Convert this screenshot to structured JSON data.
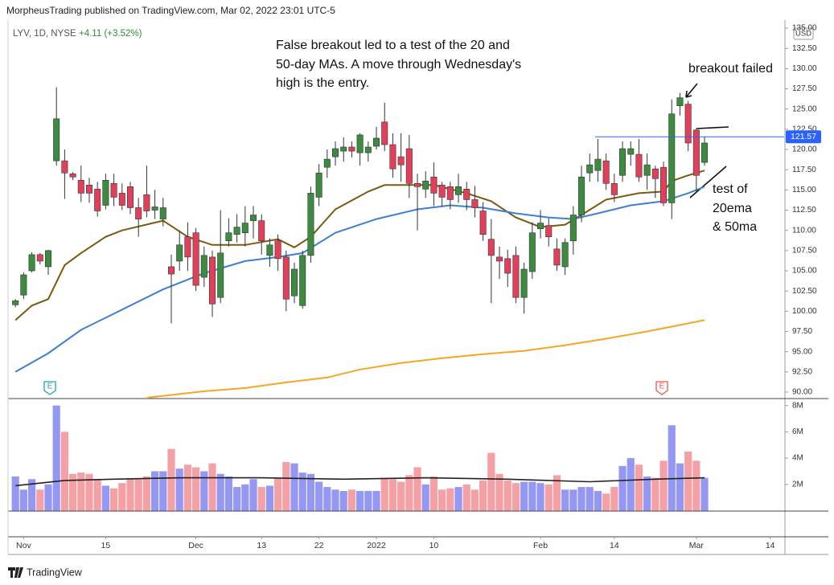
{
  "chart_data": {
    "type": "candlestick",
    "title": "MorpheusTrading published on TradingView.com, Mar 02, 2022 23:01 UTC-5",
    "symbol": "LYV, 1D, NYSE",
    "change": "+4.11 (+3.52%)",
    "currency": "USD",
    "footer": "TradingView",
    "annotations": {
      "note": [
        "False breakout led to a test of the 20 and",
        "50-day MAs.  A move through Wednesday's",
        "high is the entry."
      ],
      "breakout": "breakout failed",
      "test": [
        "test of",
        "20ema",
        "& 50ma"
      ]
    },
    "up_color": "#3d8b40",
    "down_color": "#e2405a",
    "candles": {
      "open": [
        100.8,
        102,
        105,
        107,
        105.5,
        118.6,
        118.6,
        117,
        116.2,
        115.6,
        115.1,
        113.1,
        115.8,
        114.6,
        115.4,
        112.8,
        114.4,
        112.5,
        111.4,
        105.5,
        106.2,
        109.2,
        109.7,
        104.2,
        106.7,
        101.7,
        108.7,
        109.5,
        109.7,
        111.2,
        111.2,
        106.9,
        108.7,
        106.7,
        101.9,
        100.7,
        106.9,
        114.1,
        117.8,
        119.1,
        119.8,
        120.3,
        119.6,
        119.6,
        120.4,
        123.4,
        120.6,
        119.1,
        120.1,
        115.8,
        115.1,
        116.6,
        115.6,
        115.4,
        114.4,
        115.1,
        113.8,
        112.4,
        108.9,
        106.7,
        106.5,
        106.9,
        101.7,
        104.9,
        110.2,
        110.6,
        107.7,
        105.5,
        108.7,
        111.9,
        117.1,
        117.4,
        118.6,
        115.8,
        116.8,
        119.4,
        119.4,
        116.8,
        117.6,
        117.8,
        113.4,
        125.4,
        125.6,
        122.4,
        118.4
      ],
      "high": [
        101.5,
        104.8,
        107.3,
        107.2,
        107.6,
        127.7,
        120,
        117.2,
        118,
        116.5,
        116,
        117,
        117,
        115.8,
        116,
        114,
        118,
        115,
        114,
        107,
        110,
        111,
        110.3,
        108,
        107.5,
        112.5,
        111.5,
        112,
        113,
        113,
        112,
        109,
        109.5,
        107.5,
        106,
        107.5,
        115.4,
        118.2,
        120,
        121,
        121.5,
        121,
        122,
        121,
        122.8,
        125.8,
        122,
        122,
        121.8,
        117,
        117.3,
        118.4,
        116,
        116,
        117,
        116,
        115.5,
        113.5,
        111.4,
        108,
        107.6,
        108,
        106,
        111,
        112.5,
        111.5,
        109,
        109,
        113,
        118,
        119.5,
        121.3,
        119.5,
        117,
        121,
        121,
        121.3,
        119.5,
        118,
        118.5,
        126.2,
        127,
        126,
        122.6,
        121.6
      ],
      "low": [
        100.5,
        101.5,
        104.8,
        105.8,
        104.5,
        118,
        113.9,
        116.2,
        113.5,
        113.4,
        111.7,
        112.6,
        113,
        112.5,
        112,
        109.2,
        111.6,
        111.4,
        110.5,
        98.5,
        105,
        105,
        102.5,
        103,
        99.3,
        101,
        108,
        108.5,
        108,
        109,
        107,
        105.5,
        105,
        100,
        101,
        100.3,
        106,
        113,
        116.5,
        118,
        118.5,
        119,
        118,
        118.5,
        120,
        119.8,
        116.5,
        116,
        114,
        110,
        114,
        113,
        113,
        112.6,
        113.4,
        112.5,
        111.6,
        108.7,
        101,
        104,
        103,
        101,
        99.7,
        104,
        109,
        108,
        105,
        104.5,
        107,
        111,
        116,
        116,
        115,
        113.5,
        116,
        118,
        116,
        115,
        114,
        113,
        111.4,
        124.2,
        119.8,
        114.7,
        118
      ],
      "close": [
        101.3,
        104.5,
        107,
        106.2,
        107.5,
        123.8,
        117.1,
        116.6,
        114.6,
        114.6,
        112.4,
        116.2,
        114.1,
        113.1,
        112.8,
        111.4,
        112.4,
        112.9,
        112.8,
        104.6,
        108.2,
        106.7,
        103.2,
        106.9,
        100.9,
        107.2,
        109.7,
        110.4,
        110.9,
        111.9,
        108.7,
        108.2,
        106.5,
        101.5,
        105.2,
        106.9,
        114.6,
        117.1,
        118.8,
        120.1,
        120.3,
        119.8,
        121.8,
        120.3,
        121.4,
        120.6,
        117.6,
        118.1,
        115.8,
        115.4,
        116.1,
        114.6,
        114.1,
        113.8,
        115.4,
        113.8,
        112.8,
        109.5,
        106.9,
        106.2,
        104.7,
        101.7,
        105.2,
        109.7,
        110.9,
        109.2,
        105.7,
        108.5,
        111.9,
        116.6,
        118.1,
        118.8,
        115.8,
        114.4,
        120.1,
        120.1,
        116.6,
        118.1,
        116.4,
        113.4,
        124.4,
        126.4,
        120.8,
        116.8,
        120.8
      ]
    },
    "moving_averages": [
      {
        "color": "#7a5a10",
        "x": [
          0,
          2,
          4,
          6,
          8,
          11,
          13,
          18,
          21,
          24,
          28,
          32,
          34,
          36,
          39,
          43,
          45,
          47,
          51,
          55,
          58,
          61,
          64,
          67,
          69,
          72,
          76,
          79,
          80,
          82,
          84
        ],
        "values": [
          98.9,
          100.7,
          101.5,
          105.7,
          107.2,
          109.2,
          110,
          111.2,
          109.2,
          108.2,
          108.2,
          108.9,
          107.9,
          109.2,
          112.6,
          114.8,
          115.6,
          115.6,
          115.6,
          114.6,
          113.6,
          111.6,
          110.4,
          110.7,
          111.9,
          113.8,
          114.6,
          114.8,
          116.1,
          116.8,
          117.4
        ]
      },
      {
        "color": "#3f7fd0",
        "x": [
          0,
          4,
          8,
          13,
          18,
          23,
          28,
          32,
          35,
          39,
          44,
          49,
          53,
          57,
          61,
          65,
          68,
          71,
          75,
          79,
          82,
          84
        ],
        "values": [
          92.5,
          94.8,
          97.7,
          100.2,
          102.7,
          104.7,
          106.2,
          106.7,
          107.2,
          109.7,
          111.4,
          112.6,
          113.1,
          112.8,
          112.1,
          111.6,
          111.4,
          112.1,
          113.1,
          113.6,
          114.6,
          115.4
        ]
      },
      {
        "color": "#f5a623",
        "x": [
          16,
          23,
          28,
          33,
          38,
          42,
          47,
          52,
          57,
          62,
          67,
          72,
          77,
          82,
          84
        ],
        "values": [
          89.3,
          90.1,
          90.5,
          91.2,
          91.8,
          92.8,
          93.6,
          94.2,
          94.7,
          95.1,
          95.8,
          96.6,
          97.5,
          98.5,
          98.9
        ]
      }
    ],
    "last_price": 121.57,
    "last_price_color": "#2962ff",
    "earnings": [
      {
        "x": 4.2,
        "label": "E",
        "color": "#26a69a"
      },
      {
        "x": 78.8,
        "label": "E",
        "color": "#ef5350"
      }
    ],
    "xlim": [
      -0.9,
      93.7
    ],
    "xticks": [
      {
        "value": 1,
        "label": "Nov"
      },
      {
        "value": 11,
        "label": "15"
      },
      {
        "value": 22,
        "label": "Dec"
      },
      {
        "value": 30,
        "label": "13"
      },
      {
        "value": 37,
        "label": "22"
      },
      {
        "value": 44,
        "label": "2022"
      },
      {
        "value": 51,
        "label": "10"
      },
      {
        "value": 64,
        "label": "Feb"
      },
      {
        "value": 73,
        "label": "14"
      },
      {
        "value": 83,
        "label": "Mar"
      },
      {
        "value": 92,
        "label": "14"
      }
    ],
    "ylim": [
      89.3,
      136
    ],
    "yticks": [
      {
        "value": 90,
        "label": "90.00"
      },
      {
        "value": 92.5,
        "label": "92.50"
      },
      {
        "value": 95,
        "label": "95.00"
      },
      {
        "value": 97.5,
        "label": "97.50"
      },
      {
        "value": 100,
        "label": "100.00"
      },
      {
        "value": 102.5,
        "label": "102.50"
      },
      {
        "value": 105,
        "label": "105.00"
      },
      {
        "value": 107.5,
        "label": "107.50"
      },
      {
        "value": 110,
        "label": "110.00"
      },
      {
        "value": 112.5,
        "label": "112.50"
      },
      {
        "value": 115,
        "label": "115.00"
      },
      {
        "value": 117.5,
        "label": "117.50"
      },
      {
        "value": 120,
        "label": "120.00"
      },
      {
        "value": 122.5,
        "label": "122.50"
      },
      {
        "value": 125,
        "label": "125.00"
      },
      {
        "value": 127.5,
        "label": "127.50"
      },
      {
        "value": 130,
        "label": "130.00"
      },
      {
        "value": 132.5,
        "label": "132.50"
      },
      {
        "value": 135,
        "label": "135.00"
      }
    ],
    "volume": {
      "up_color": "#9598f3",
      "down_color": "#f5a0a5",
      "values": [
        2600000,
        1600000,
        2400000,
        1600000,
        2000000,
        8000000,
        6000000,
        2800000,
        2900000,
        2800000,
        2400000,
        1900000,
        1700000,
        2100000,
        2400000,
        2400000,
        2600000,
        3000000,
        3000000,
        4700000,
        3200000,
        3500000,
        3300000,
        3000000,
        3600000,
        2800000,
        2600000,
        1800000,
        2000000,
        2400000,
        1800000,
        1900000,
        2500000,
        3700000,
        3600000,
        2900000,
        2800000,
        2200000,
        1800000,
        1600000,
        1500000,
        1600000,
        1500000,
        1500000,
        1500000,
        2500000,
        2400000,
        2200000,
        2700000,
        3300000,
        2000000,
        2600000,
        1600000,
        1700000,
        1800000,
        2000000,
        1600000,
        2300000,
        4400000,
        2800000,
        2300000,
        2100000,
        2200000,
        2200000,
        2100000,
        2000000,
        2700000,
        1600000,
        1600000,
        1800000,
        1800000,
        1500000,
        1300000,
        1800000,
        3400000,
        4000000,
        3500000,
        2600000,
        2500000,
        3800000,
        6500000,
        3600000,
        4500000,
        3800000,
        2500000
      ],
      "ylim": [
        0,
        8470000
      ],
      "yticks": [
        {
          "value": 2000000,
          "label": "2M"
        },
        {
          "value": 4000000,
          "label": "4M"
        },
        {
          "value": 6000000,
          "label": "6M"
        },
        {
          "value": 8000000,
          "label": "8M"
        }
      ],
      "ma": {
        "color": "#222222",
        "x": [
          0,
          6,
          12,
          20,
          30,
          40,
          50,
          60,
          70,
          78,
          84
        ],
        "values": [
          1900000,
          2300000,
          2400000,
          2500000,
          2500000,
          2400000,
          2500000,
          2400000,
          2200000,
          2400000,
          2500000
        ]
      }
    }
  }
}
